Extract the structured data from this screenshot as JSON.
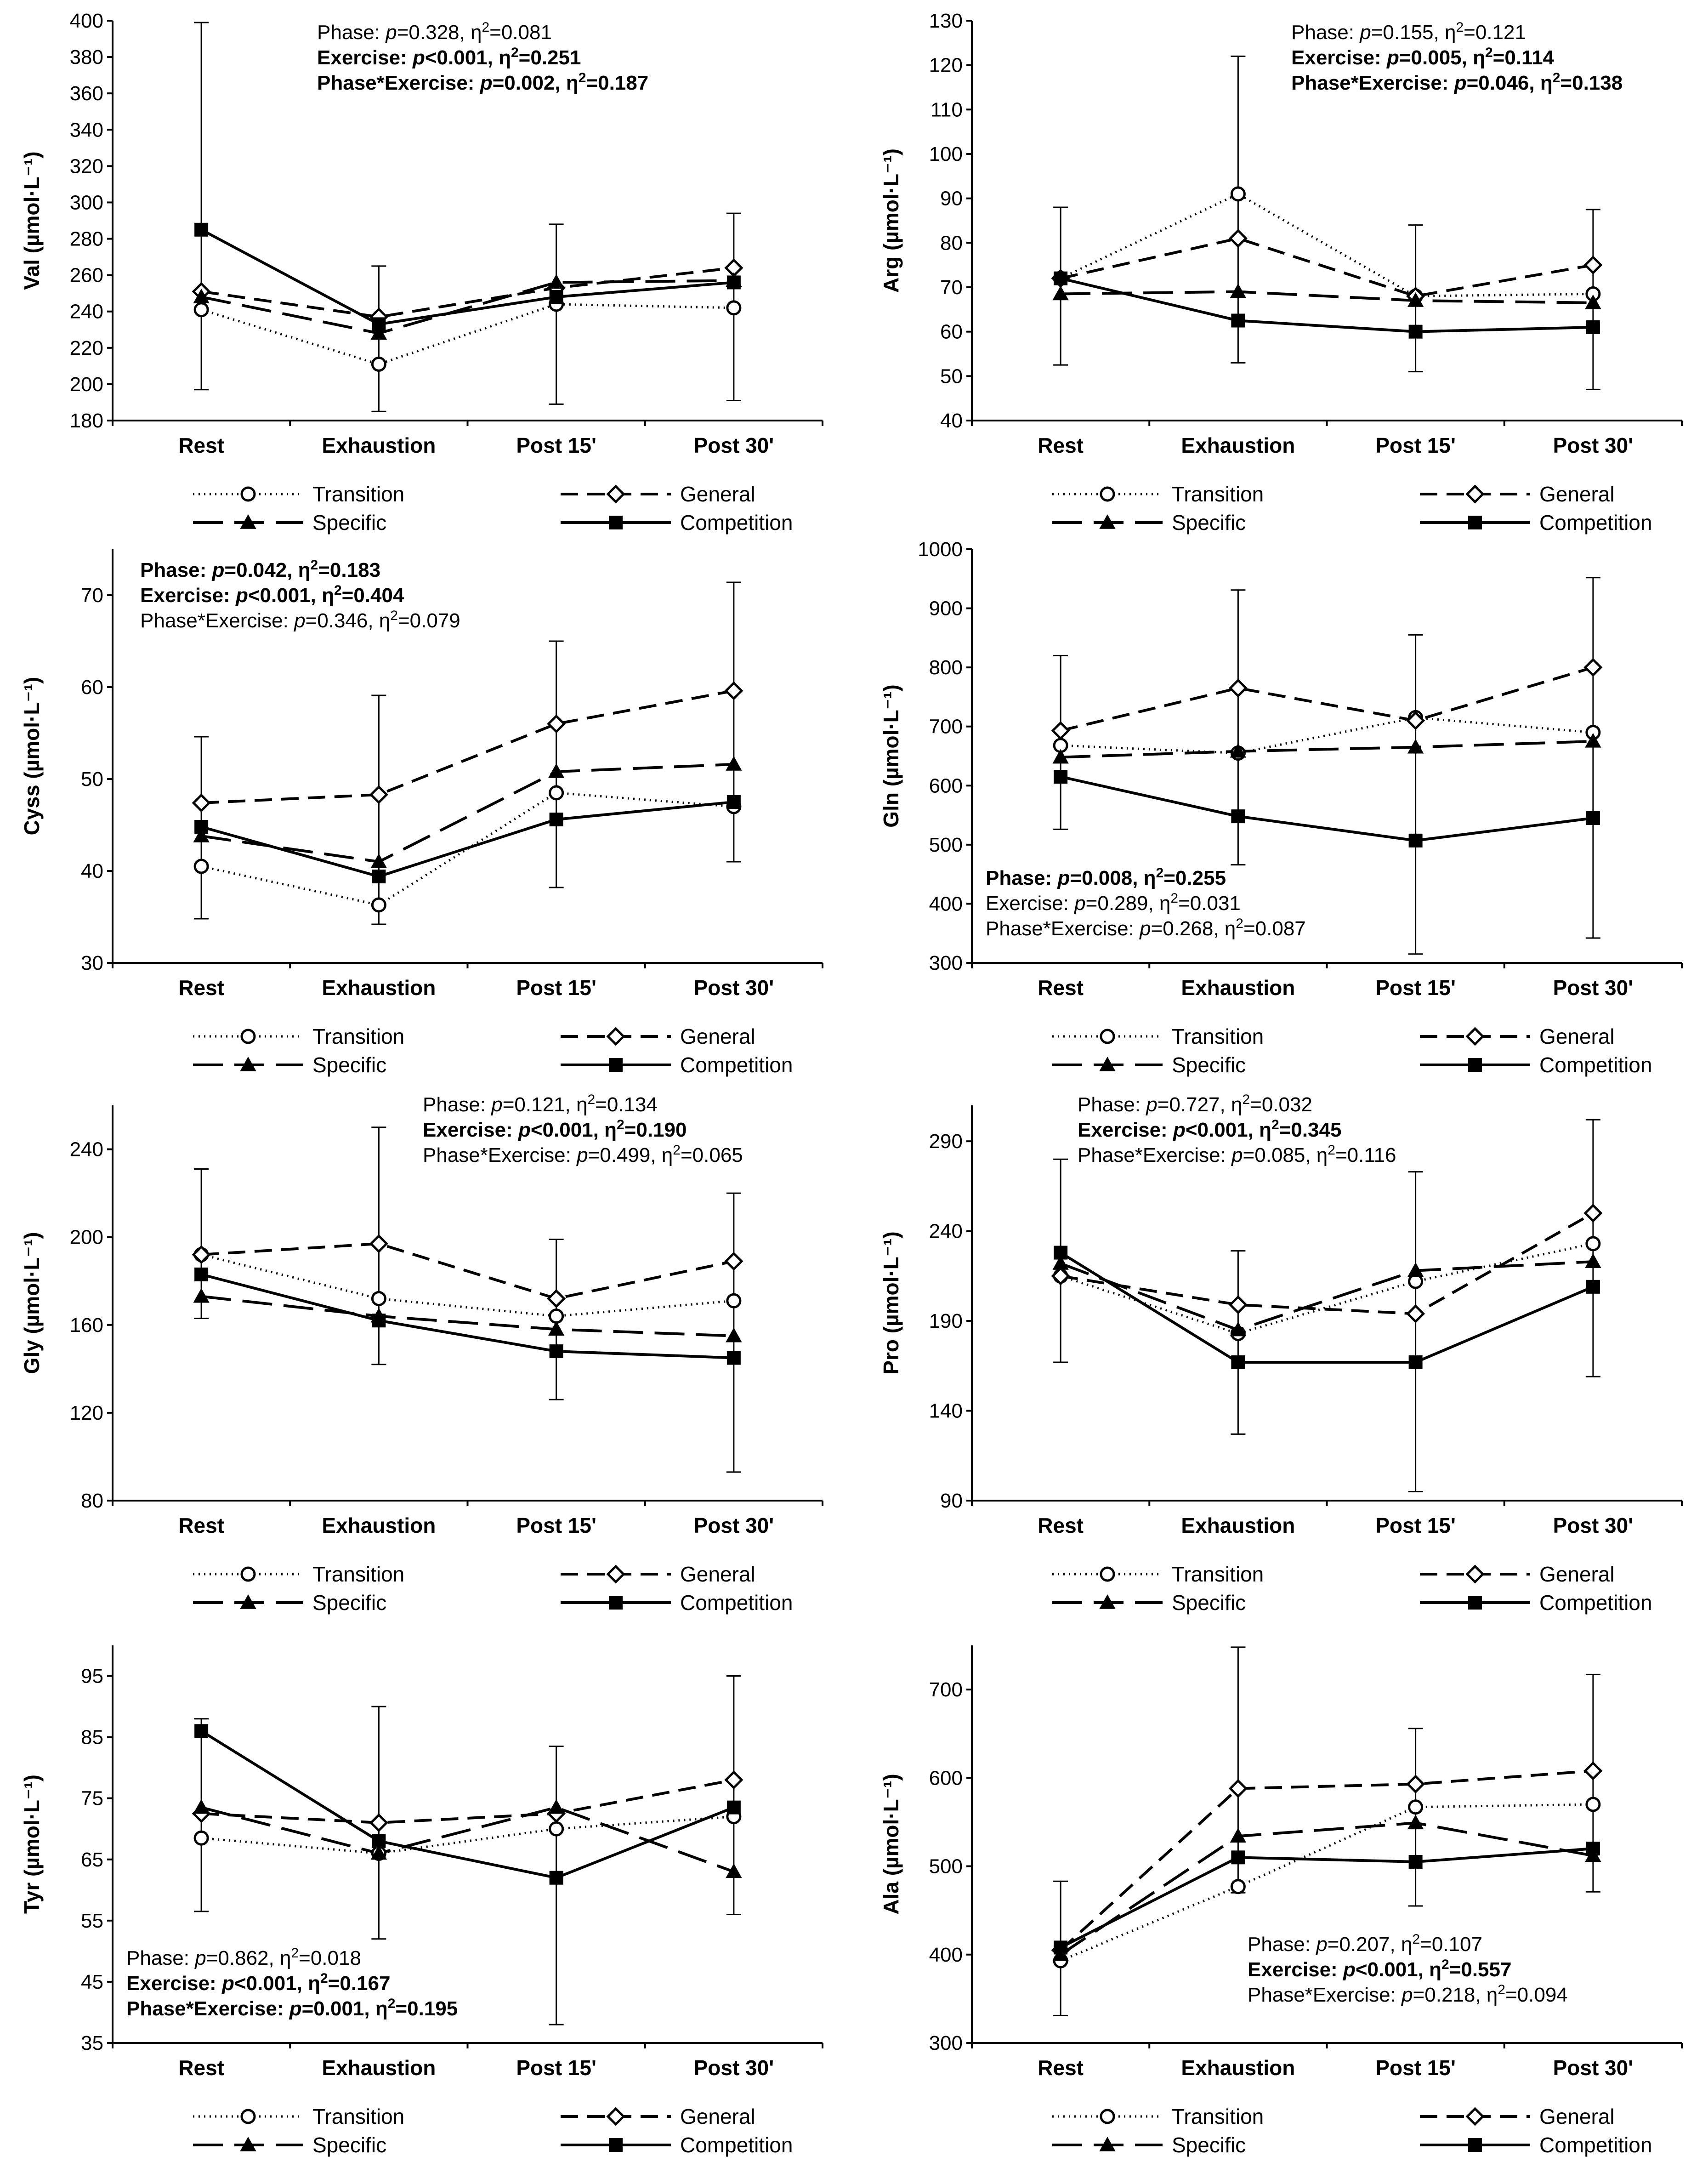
{
  "chart_data": [
    {
      "type": "line",
      "ylabel": "Val (µmol·L⁻¹)",
      "ylim": [
        180,
        400
      ],
      "yticks": [
        180,
        200,
        220,
        240,
        260,
        280,
        300,
        320,
        340,
        360,
        380,
        400
      ],
      "categories": [
        "Rest",
        "Exhaustion",
        "Post 15'",
        "Post 30'"
      ],
      "series": [
        {
          "name": "Transition",
          "values": [
            241,
            211,
            244,
            242
          ]
        },
        {
          "name": "General",
          "values": [
            251,
            237,
            253,
            264
          ]
        },
        {
          "name": "Specific",
          "values": [
            248,
            228,
            256,
            257
          ]
        },
        {
          "name": "Competition",
          "values": [
            285,
            233,
            248,
            256
          ]
        }
      ],
      "error_bars": [
        {
          "category": "Rest",
          "low": 197,
          "high": 399
        },
        {
          "category": "Exhaustion",
          "low": 185,
          "high": 265
        },
        {
          "category": "Post 15'",
          "low": 189,
          "high": 288
        },
        {
          "category": "Post 30'",
          "low": 191,
          "high": 294
        }
      ],
      "annotations": [
        {
          "label": "Phase:",
          "p": "p",
          "rest": "=0.328, η",
          "sup": "2",
          "val": "=0.081",
          "bold": false
        },
        {
          "label": "Exercise:",
          "p": "p",
          "rest": "<0.001, η",
          "sup": "2",
          "val": "=0.251",
          "bold": true
        },
        {
          "label": "Phase*Exercise:",
          "p": "p",
          "rest": "=0.002, η",
          "sup": "2",
          "val": "=0.187",
          "bold": true
        }
      ]
    },
    {
      "type": "line",
      "ylabel": "Arg (µmol·L⁻¹)",
      "ylim": [
        40,
        130
      ],
      "yticks": [
        40,
        50,
        60,
        70,
        80,
        90,
        100,
        110,
        120,
        130
      ],
      "categories": [
        "Rest",
        "Exhaustion",
        "Post 15'",
        "Post 30'"
      ],
      "series": [
        {
          "name": "Transition",
          "values": [
            72,
            91,
            68,
            68.5
          ]
        },
        {
          "name": "General",
          "values": [
            72,
            81,
            68,
            75
          ]
        },
        {
          "name": "Specific",
          "values": [
            68.5,
            69,
            67,
            66.5
          ]
        },
        {
          "name": "Competition",
          "values": [
            72,
            62.5,
            60,
            61
          ]
        }
      ],
      "error_bars": [
        {
          "category": "Rest",
          "low": 52.5,
          "high": 88
        },
        {
          "category": "Exhaustion",
          "low": 53,
          "high": 122
        },
        {
          "category": "Post 15'",
          "low": 51,
          "high": 84
        },
        {
          "category": "Post 30'",
          "low": 47,
          "high": 87.5
        }
      ],
      "annotations": [
        {
          "label": "Phase:",
          "p": "p",
          "rest": "=0.155, η",
          "sup": "2",
          "val": "=0.121",
          "bold": false
        },
        {
          "label": "Exercise:",
          "p": "p",
          "rest": "=0.005, η",
          "sup": "2",
          "val": "=0.114",
          "bold": true
        },
        {
          "label": "Phase*Exercise:",
          "p": "p",
          "rest": "=0.046, η",
          "sup": "2",
          "val": "=0.138",
          "bold": true
        }
      ]
    },
    {
      "type": "line",
      "ylabel": "Cyss (µmol·L⁻¹)",
      "ylim": [
        30,
        75
      ],
      "yticks": [
        30,
        40,
        50,
        60,
        70
      ],
      "categories": [
        "Rest",
        "Exhaustion",
        "Post 15'",
        "Post 30'"
      ],
      "series": [
        {
          "name": "Transition",
          "values": [
            40.5,
            36.3,
            48.5,
            47
          ]
        },
        {
          "name": "General",
          "values": [
            47.4,
            48.3,
            56,
            59.6
          ]
        },
        {
          "name": "Specific",
          "values": [
            43.8,
            41,
            50.8,
            51.6
          ]
        },
        {
          "name": "Competition",
          "values": [
            44.8,
            39.4,
            45.6,
            47.5
          ]
        }
      ],
      "error_bars": [
        {
          "category": "Rest",
          "low": 34.8,
          "high": 54.6
        },
        {
          "category": "Exhaustion",
          "low": 34.2,
          "high": 59.1
        },
        {
          "category": "Post 15'",
          "low": 38.2,
          "high": 65
        },
        {
          "category": "Post 30'",
          "low": 41,
          "high": 71.4
        }
      ],
      "annotations": [
        {
          "label": "Phase:",
          "p": "p",
          "rest": "=0.042, η",
          "sup": "2",
          "val": "=0.183",
          "bold": true
        },
        {
          "label": "Exercise:",
          "p": "p",
          "rest": "<0.001, η",
          "sup": "2",
          "val": "=0.404",
          "bold": true
        },
        {
          "label": "Phase*Exercise:",
          "p": "p",
          "rest": "=0.346, η",
          "sup": "2",
          "val": "=0.079",
          "bold": false
        }
      ]
    },
    {
      "type": "line",
      "ylabel": "Gln (µmol·L⁻¹)",
      "ylim": [
        300,
        1000
      ],
      "yticks": [
        300,
        400,
        500,
        600,
        700,
        800,
        900,
        1000
      ],
      "categories": [
        "Rest",
        "Exhaustion",
        "Post 15'",
        "Post 30'"
      ],
      "series": [
        {
          "name": "Transition",
          "values": [
            668,
            655,
            715,
            690
          ]
        },
        {
          "name": "General",
          "values": [
            693,
            765,
            710,
            800
          ]
        },
        {
          "name": "Specific",
          "values": [
            648,
            658,
            665,
            675
          ]
        },
        {
          "name": "Competition",
          "values": [
            615,
            548,
            507,
            545
          ]
        }
      ],
      "error_bars": [
        {
          "category": "Rest",
          "low": 526,
          "high": 820
        },
        {
          "category": "Exhaustion",
          "low": 466,
          "high": 931
        },
        {
          "category": "Post 15'",
          "low": 315,
          "high": 855
        },
        {
          "category": "Post 30'",
          "low": 342,
          "high": 952
        }
      ],
      "annotations": [
        {
          "label": "Phase:",
          "p": "p",
          "rest": "=0.008, η",
          "sup": "2",
          "val": "=0.255",
          "bold": true
        },
        {
          "label": "Exercise:",
          "p": "p",
          "rest": "=0.289, η",
          "sup": "2",
          "val": "=0.031",
          "bold": false
        },
        {
          "label": "Phase*Exercise:",
          "p": "p",
          "rest": "=0.268, η",
          "sup": "2",
          "val": "=0.087",
          "bold": false
        }
      ]
    },
    {
      "type": "line",
      "ylabel": "Gly (µmol·L⁻¹)",
      "ylim": [
        80,
        260
      ],
      "yticks": [
        80,
        120,
        160,
        200,
        240
      ],
      "categories": [
        "Rest",
        "Exhaustion",
        "Post 15'",
        "Post 30'"
      ],
      "series": [
        {
          "name": "Transition",
          "values": [
            192,
            172,
            164,
            171
          ]
        },
        {
          "name": "General",
          "values": [
            192,
            197,
            172,
            189
          ]
        },
        {
          "name": "Specific",
          "values": [
            173,
            164,
            158,
            155
          ]
        },
        {
          "name": "Competition",
          "values": [
            183,
            162,
            148,
            145
          ]
        }
      ],
      "error_bars": [
        {
          "category": "Rest",
          "low": 163,
          "high": 231
        },
        {
          "category": "Exhaustion",
          "low": 142,
          "high": 250
        },
        {
          "category": "Post 15'",
          "low": 126,
          "high": 199
        },
        {
          "category": "Post 30'",
          "low": 93,
          "high": 220
        }
      ],
      "annotations": [
        {
          "label": "Phase:",
          "p": "p",
          "rest": "=0.121, η",
          "sup": "2",
          "val": "=0.134",
          "bold": false
        },
        {
          "label": "Exercise:",
          "p": "p",
          "rest": "<0.001, η",
          "sup": "2",
          "val": "=0.190",
          "bold": true
        },
        {
          "label": "Phase*Exercise:",
          "p": "p",
          "rest": "=0.499, η",
          "sup": "2",
          "val": "=0.065",
          "bold": false
        }
      ]
    },
    {
      "type": "line",
      "ylabel": "Pro (µmol·L⁻¹)",
      "ylim": [
        90,
        310
      ],
      "yticks": [
        90,
        140,
        190,
        240,
        290
      ],
      "categories": [
        "Rest",
        "Exhaustion",
        "Post 15'",
        "Post 30'"
      ],
      "series": [
        {
          "name": "Transition",
          "values": [
            215,
            183,
            212,
            233
          ]
        },
        {
          "name": "General",
          "values": [
            215,
            199,
            194,
            250
          ]
        },
        {
          "name": "Specific",
          "values": [
            222,
            185,
            218,
            223
          ]
        },
        {
          "name": "Competition",
          "values": [
            228,
            167,
            167,
            209
          ]
        }
      ],
      "error_bars": [
        {
          "category": "Rest",
          "low": 167,
          "high": 280
        },
        {
          "category": "Exhaustion",
          "low": 127,
          "high": 229
        },
        {
          "category": "Post 15'",
          "low": 95,
          "high": 273
        },
        {
          "category": "Post 30'",
          "low": 159,
          "high": 302
        }
      ],
      "annotations": [
        {
          "label": "Phase:",
          "p": "p",
          "rest": "=0.727, η",
          "sup": "2",
          "val": "=0.032",
          "bold": false
        },
        {
          "label": "Exercise:",
          "p": "p",
          "rest": "<0.001, η",
          "sup": "2",
          "val": "=0.345",
          "bold": true
        },
        {
          "label": "Phase*Exercise:",
          "p": "p",
          "rest": "=0.085, η",
          "sup": "2",
          "val": "=0.116",
          "bold": false
        }
      ]
    },
    {
      "type": "line",
      "ylabel": "Tyr (µmol·L⁻¹)",
      "ylim": [
        35,
        100
      ],
      "yticks": [
        35,
        45,
        55,
        65,
        75,
        85,
        95
      ],
      "categories": [
        "Rest",
        "Exhaustion",
        "Post 15'",
        "Post 30'"
      ],
      "series": [
        {
          "name": "Transition",
          "values": [
            68.5,
            66,
            70,
            72
          ]
        },
        {
          "name": "General",
          "values": [
            72.5,
            71,
            72.5,
            78
          ]
        },
        {
          "name": "Specific",
          "values": [
            73.5,
            66,
            73.5,
            63
          ]
        },
        {
          "name": "Competition",
          "values": [
            86,
            68,
            62,
            73.5
          ]
        }
      ],
      "error_bars": [
        {
          "category": "Rest",
          "low": 56.5,
          "high": 88
        },
        {
          "category": "Exhaustion",
          "low": 52,
          "high": 90
        },
        {
          "category": "Post 15'",
          "low": 38,
          "high": 83.5
        },
        {
          "category": "Post 30'",
          "low": 56,
          "high": 95
        }
      ],
      "annotations": [
        {
          "label": "Phase:",
          "p": "p",
          "rest": "=0.862, η",
          "sup": "2",
          "val": "=0.018",
          "bold": false
        },
        {
          "label": "Exercise:",
          "p": "p",
          "rest": "<0.001, η",
          "sup": "2",
          "val": "=0.167",
          "bold": true
        },
        {
          "label": "Phase*Exercise:",
          "p": "p",
          "rest": "=0.001, η",
          "sup": "2",
          "val": "=0.195",
          "bold": true
        }
      ]
    },
    {
      "type": "line",
      "ylabel": "Ala (µmol·L⁻¹)",
      "ylim": [
        300,
        750
      ],
      "yticks": [
        300,
        400,
        500,
        600,
        700
      ],
      "categories": [
        "Rest",
        "Exhaustion",
        "Post 15'",
        "Post 30'"
      ],
      "series": [
        {
          "name": "Transition",
          "values": [
            393,
            477,
            567,
            570
          ]
        },
        {
          "name": "General",
          "values": [
            405,
            588,
            593,
            608
          ]
        },
        {
          "name": "Specific",
          "values": [
            400,
            534,
            549,
            512
          ]
        },
        {
          "name": "Competition",
          "values": [
            408,
            510,
            505,
            520
          ]
        }
      ],
      "error_bars": [
        {
          "category": "Rest",
          "low": 331,
          "high": 483
        },
        {
          "category": "Exhaustion",
          "low": 470,
          "high": 748
        },
        {
          "category": "Post 15'",
          "low": 455,
          "high": 656
        },
        {
          "category": "Post 30'",
          "low": 471,
          "high": 717
        }
      ],
      "annotations": [
        {
          "label": "Phase:",
          "p": "p",
          "rest": "=0.207, η",
          "sup": "2",
          "val": "=0.107",
          "bold": false
        },
        {
          "label": "Exercise:",
          "p": "p",
          "rest": "<0.001, η",
          "sup": "2",
          "val": "=0.557",
          "bold": true
        },
        {
          "label": "Phase*Exercise:",
          "p": "p",
          "rest": "=0.218, η",
          "sup": "2",
          "val": "=0.094",
          "bold": false
        }
      ]
    }
  ],
  "legend": [
    "Transition",
    "General",
    "Specific",
    "Competition"
  ]
}
